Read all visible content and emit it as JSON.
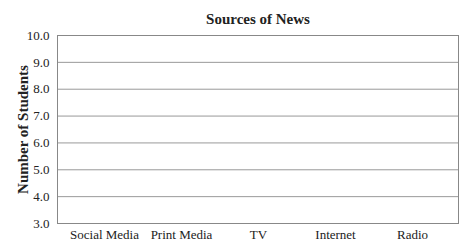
{
  "chart_data": {
    "type": "bar",
    "title": "Sources of News",
    "y_label": "Number of Students",
    "categories": [
      "Social Media",
      "Print Media",
      "TV",
      "Internet",
      "Radio"
    ],
    "values": [
      null,
      null,
      null,
      null,
      null
    ],
    "ylim": [
      3,
      10
    ],
    "yticks": [
      3,
      4,
      5,
      6,
      7,
      8,
      9,
      10
    ],
    "grid": true
  }
}
